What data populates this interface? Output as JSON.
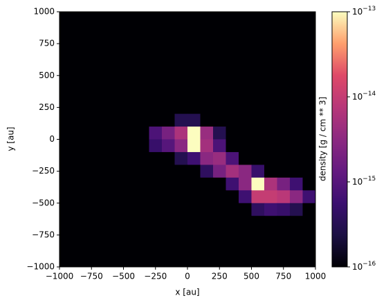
{
  "chart_data": {
    "type": "heatmap",
    "xlabel": "x [au]",
    "ylabel": "y [au]",
    "xlim": [
      -1000,
      1000
    ],
    "ylim": [
      -1000,
      1000
    ],
    "xticks": [
      {
        "value": -1000,
        "label": "−1000"
      },
      {
        "value": -750,
        "label": "−750"
      },
      {
        "value": -500,
        "label": "−500"
      },
      {
        "value": -250,
        "label": "−250"
      },
      0,
      250,
      500,
      750,
      1000
    ],
    "yticks": [
      {
        "value": -1000,
        "label": "−1000"
      },
      {
        "value": -750,
        "label": "−750"
      },
      {
        "value": -500,
        "label": "−500"
      },
      {
        "value": -250,
        "label": "−250"
      },
      0,
      250,
      500,
      750,
      1000
    ],
    "x": [
      -950,
      -850,
      -750,
      -650,
      -550,
      -450,
      -350,
      -250,
      -150,
      -50,
      50,
      150,
      250,
      350,
      450,
      550,
      650,
      750,
      850,
      950
    ],
    "y": [
      950,
      850,
      750,
      650,
      550,
      450,
      350,
      250,
      150,
      50,
      -50,
      -150,
      -250,
      -350,
      -450,
      -550,
      -650,
      -750,
      -850,
      -950
    ],
    "z": [
      [
        1e-16,
        1e-16,
        1e-16,
        1e-16,
        1e-16,
        1e-16,
        1e-16,
        1e-16,
        1e-16,
        1e-16,
        1e-16,
        1e-16,
        1e-16,
        1e-16,
        1e-16,
        1e-16,
        1e-16,
        1e-16,
        1e-16,
        1e-16
      ],
      [
        1e-16,
        1e-16,
        1e-16,
        1e-16,
        1e-16,
        1e-16,
        1e-16,
        1e-16,
        1e-16,
        1e-16,
        1e-16,
        1e-16,
        1e-16,
        1e-16,
        1e-16,
        1e-16,
        1e-16,
        1e-16,
        1e-16,
        1e-16
      ],
      [
        1e-16,
        1e-16,
        1e-16,
        1e-16,
        1e-16,
        1e-16,
        1e-16,
        1e-16,
        1e-16,
        1e-16,
        1e-16,
        1e-16,
        1e-16,
        1e-16,
        1e-16,
        1e-16,
        1e-16,
        1e-16,
        1e-16,
        1e-16
      ],
      [
        1e-16,
        1e-16,
        1e-16,
        1e-16,
        1e-16,
        1e-16,
        1e-16,
        1e-16,
        1e-16,
        1e-16,
        1e-16,
        1e-16,
        1e-16,
        1e-16,
        1e-16,
        1e-16,
        1e-16,
        1e-16,
        1e-16,
        1e-16
      ],
      [
        1e-16,
        1e-16,
        1e-16,
        1e-16,
        1e-16,
        1e-16,
        1e-16,
        1e-16,
        1e-16,
        1e-16,
        1e-16,
        1e-16,
        1e-16,
        1e-16,
        1e-16,
        1e-16,
        1e-16,
        1e-16,
        1e-16,
        1e-16
      ],
      [
        1e-16,
        1e-16,
        1e-16,
        1e-16,
        1e-16,
        1e-16,
        1e-16,
        1e-16,
        1e-16,
        1e-16,
        1e-16,
        1e-16,
        1e-16,
        1e-16,
        1e-16,
        1e-16,
        1e-16,
        1e-16,
        1e-16,
        1e-16
      ],
      [
        1e-16,
        1e-16,
        1e-16,
        1e-16,
        1e-16,
        1e-16,
        1e-16,
        1e-16,
        1e-16,
        1e-16,
        1e-16,
        1e-16,
        1e-16,
        1e-16,
        1e-16,
        1e-16,
        1e-16,
        1e-16,
        1e-16,
        1e-16
      ],
      [
        1e-16,
        1e-16,
        1e-16,
        1e-16,
        1e-16,
        1e-16,
        1e-16,
        1e-16,
        1e-16,
        1e-16,
        1e-16,
        1e-16,
        1e-16,
        1e-16,
        1e-16,
        1e-16,
        1e-16,
        1e-16,
        1e-16,
        1e-16
      ],
      [
        1e-16,
        1e-16,
        1e-16,
        1e-16,
        1e-16,
        1e-16,
        1e-16,
        1e-16,
        1e-16,
        3e-16,
        3e-16,
        1e-16,
        1e-16,
        1e-16,
        1e-16,
        1e-16,
        1e-16,
        1e-16,
        1e-16,
        1e-16
      ],
      [
        1e-16,
        1e-16,
        1e-16,
        1e-16,
        1e-16,
        1e-16,
        1e-16,
        8e-16,
        2e-15,
        6e-15,
        1e-13,
        4e-15,
        3e-16,
        1e-16,
        1e-16,
        1e-16,
        1e-16,
        1e-16,
        1e-16,
        1e-16
      ],
      [
        1e-16,
        1e-16,
        1e-16,
        1e-16,
        1e-16,
        1e-16,
        1e-16,
        5e-16,
        1e-15,
        3e-15,
        1e-13,
        5e-15,
        8e-16,
        1e-16,
        1e-16,
        1e-16,
        1e-16,
        1e-16,
        1e-16,
        1e-16
      ],
      [
        1e-16,
        1e-16,
        1e-16,
        1e-16,
        1e-16,
        1e-16,
        1e-16,
        1e-16,
        1e-16,
        3e-16,
        6e-16,
        3e-15,
        4e-15,
        8e-16,
        1e-16,
        1e-16,
        1e-16,
        1e-16,
        1e-16,
        1e-16
      ],
      [
        1e-16,
        1e-16,
        1e-16,
        1e-16,
        1e-16,
        1e-16,
        1e-16,
        1e-16,
        1e-16,
        1e-16,
        1e-16,
        4e-16,
        2e-15,
        5e-15,
        3e-15,
        5e-16,
        1e-16,
        1e-16,
        1e-16,
        1e-16
      ],
      [
        1e-16,
        1e-16,
        1e-16,
        1e-16,
        1e-16,
        1e-16,
        1e-16,
        1e-16,
        1e-16,
        1e-16,
        1e-16,
        1e-16,
        1e-16,
        6e-16,
        3e-15,
        1e-13,
        6e-15,
        2e-15,
        6e-16,
        1e-16
      ],
      [
        1e-16,
        1e-16,
        1e-16,
        1e-16,
        1e-16,
        1e-16,
        1e-16,
        1e-16,
        1e-16,
        1e-16,
        1e-16,
        1e-16,
        1e-16,
        1e-16,
        6e-16,
        1e-14,
        1e-14,
        8e-15,
        3e-15,
        6e-16
      ],
      [
        1e-16,
        1e-16,
        1e-16,
        1e-16,
        1e-16,
        1e-16,
        1e-16,
        1e-16,
        1e-16,
        1e-16,
        1e-16,
        1e-16,
        1e-16,
        1e-16,
        1e-16,
        4e-16,
        6e-16,
        5e-16,
        3e-16,
        1e-16
      ],
      [
        1e-16,
        1e-16,
        1e-16,
        1e-16,
        1e-16,
        1e-16,
        1e-16,
        1e-16,
        1e-16,
        1e-16,
        1e-16,
        1e-16,
        1e-16,
        1e-16,
        1e-16,
        1e-16,
        1e-16,
        1e-16,
        1e-16,
        1e-16
      ],
      [
        1e-16,
        1e-16,
        1e-16,
        1e-16,
        1e-16,
        1e-16,
        1e-16,
        1e-16,
        1e-16,
        1e-16,
        1e-16,
        1e-16,
        1e-16,
        1e-16,
        1e-16,
        1e-16,
        1e-16,
        1e-16,
        1e-16,
        1e-16
      ],
      [
        1e-16,
        1e-16,
        1e-16,
        1e-16,
        1e-16,
        1e-16,
        1e-16,
        1e-16,
        1e-16,
        1e-16,
        1e-16,
        1e-16,
        1e-16,
        1e-16,
        1e-16,
        1e-16,
        1e-16,
        1e-16,
        1e-16,
        1e-16
      ],
      [
        1e-16,
        1e-16,
        1e-16,
        1e-16,
        1e-16,
        1e-16,
        1e-16,
        1e-16,
        1e-16,
        1e-16,
        1e-16,
        1e-16,
        1e-16,
        1e-16,
        1e-16,
        1e-16,
        1e-16,
        1e-16,
        1e-16,
        1e-16
      ]
    ],
    "colormap": "magma",
    "colorbar": {
      "label": "density [g / cm ** 3]",
      "log": true,
      "lim": [
        1e-16,
        1e-13
      ],
      "ticks": [
        {
          "value": 1e-16,
          "label": "10−16"
        },
        {
          "value": 1e-15,
          "label": "10−15"
        },
        {
          "value": 1e-14,
          "label": "10−14"
        },
        {
          "value": 1e-13,
          "label": "10−13"
        }
      ]
    }
  }
}
